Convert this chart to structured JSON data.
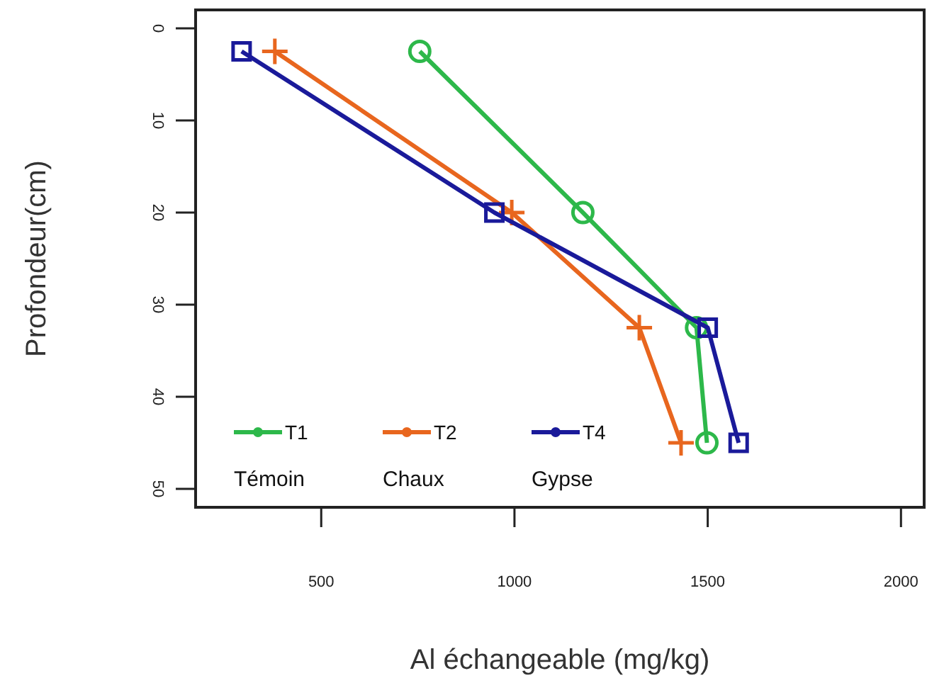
{
  "chart_data": {
    "type": "line",
    "xlabel": "Al échangeable (mg/kg)",
    "ylabel": "Profondeur(cm)",
    "xlim": [
      175,
      2060
    ],
    "xticks": [
      500,
      1000,
      1500,
      2000
    ],
    "ylim": [
      52,
      -2
    ],
    "yticks": [
      0,
      10,
      20,
      30,
      40,
      50
    ],
    "grid": false,
    "legend": "bottom left",
    "line_style": "solid",
    "annotations": [
      "Témoin",
      "Chaux",
      "Gypse"
    ],
    "series": [
      {
        "name": "T1",
        "color": "#2db84a",
        "marker": "circle",
        "x": [
          755,
          1177,
          1471,
          1498
        ],
        "values": [
          2.5,
          20,
          32.5,
          45
        ]
      },
      {
        "name": "T2",
        "color": "#e8661e",
        "marker": "cross",
        "x": [
          380,
          993,
          1323,
          1431
        ],
        "values": [
          2.5,
          20,
          32.5,
          45
        ]
      },
      {
        "name": "T4",
        "color": "#1a1a9a",
        "marker": "square",
        "x": [
          294,
          948,
          1500,
          1580
        ],
        "values": [
          2.5,
          20,
          32.5,
          45
        ]
      }
    ]
  }
}
